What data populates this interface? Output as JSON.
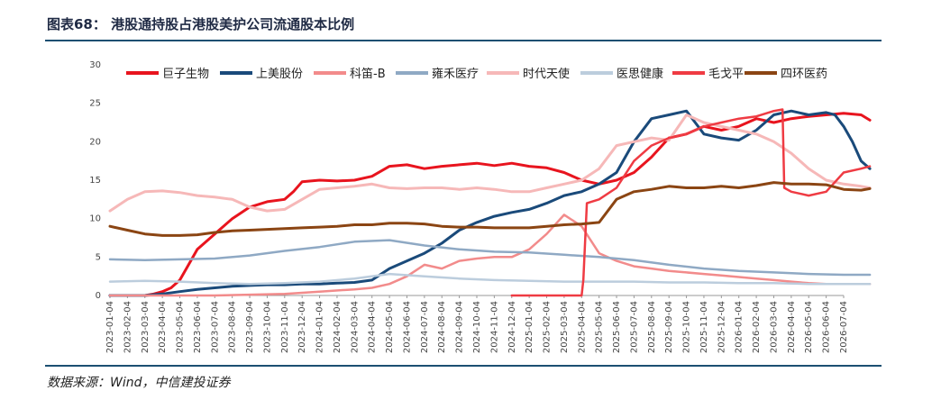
{
  "header": {
    "title": "图表68： 港股通持股占港股美护公司流通股本比例"
  },
  "footer": {
    "source": "数据来源：Wind，中信建投证券"
  },
  "chart_data": {
    "type": "line",
    "title": "",
    "xlabel": "",
    "ylabel": "",
    "ylim": [
      0,
      30
    ],
    "yticks": [
      0,
      5,
      10,
      15,
      20,
      25,
      30
    ],
    "grid": false,
    "legend_position": "top",
    "x_ticks": [
      "2023-01-04",
      "2023-02-04",
      "2023-03-04",
      "2023-04-04",
      "2023-05-04",
      "2023-06-04",
      "2023-07-04",
      "2023-08-04",
      "2023-09-04",
      "2023-10-04",
      "2023-11-04",
      "2023-12-04",
      "2024-01-04",
      "2024-02-04",
      "2024-03-04",
      "2024-04-04",
      "2024-05-04",
      "2024-06-04",
      "2024-07-04",
      "2024-08-04",
      "2024-09-04",
      "2024-10-04",
      "2024-11-04",
      "2024-12-04",
      "2025-01-04",
      "2025-02-04",
      "2025-03-04",
      "2025-04-04",
      "2025-05-04",
      "2025-06-04",
      "2025-07-04",
      "2025-08-04",
      "2025-09-04",
      "2025-10-04",
      "2025-11-04",
      "2025-12-04",
      "2026-01-04",
      "2026-02-04",
      "2026-03-04",
      "2026-04-04",
      "2026-05-04",
      "2026-06-04",
      "2026-07-04"
    ],
    "series": [
      {
        "name": "巨子生物",
        "color": "#e8141e",
        "width": 3,
        "x": [
          0,
          2,
          2.5,
          3,
          3.5,
          4,
          4.5,
          5,
          6,
          7,
          8,
          9,
          10,
          10.5,
          11,
          12,
          13,
          14,
          15,
          16,
          17,
          18,
          19,
          20,
          21,
          22,
          23,
          24,
          25,
          26,
          27,
          28,
          29,
          30,
          31,
          32,
          33,
          34,
          35,
          36,
          37,
          38,
          39,
          40,
          41,
          42,
          43,
          43.5
        ],
        "y": [
          0,
          0,
          0.2,
          0.5,
          1,
          2,
          4,
          6,
          8,
          10,
          11.5,
          12.2,
          12.5,
          13.5,
          14.8,
          15,
          14.9,
          15,
          15.5,
          16.8,
          17,
          16.5,
          16.8,
          17,
          17.2,
          16.9,
          17.2,
          16.8,
          16.6,
          16,
          15,
          14.5,
          15,
          16,
          18,
          20.5,
          21,
          22,
          21.5,
          22,
          23,
          22.5,
          23,
          23.3,
          23.5,
          23.7,
          23.5,
          22.8
        ]
      },
      {
        "name": "上美股份",
        "color": "#1a4a7a",
        "width": 3,
        "x": [
          0,
          2,
          3,
          4,
          5,
          6,
          7,
          8,
          9,
          10,
          11,
          12,
          13,
          14,
          15,
          16,
          17,
          18,
          19,
          20,
          21,
          22,
          23,
          24,
          25,
          26,
          27,
          28,
          29,
          30,
          31,
          32,
          33,
          34,
          35,
          36,
          37,
          38,
          39,
          40,
          41,
          41.5,
          42,
          42.5,
          43,
          43.5
        ],
        "y": [
          0,
          0,
          0.2,
          0.5,
          0.8,
          1,
          1.2,
          1.3,
          1.4,
          1.4,
          1.5,
          1.5,
          1.6,
          1.7,
          2,
          3.5,
          4.5,
          5.5,
          6.8,
          8.5,
          9.5,
          10.3,
          10.8,
          11.2,
          12,
          13,
          13.5,
          14.5,
          16,
          20,
          23,
          23.5,
          24,
          21,
          20.5,
          20.2,
          21.5,
          23.5,
          24,
          23.5,
          23.8,
          23.5,
          22,
          20,
          17.5,
          16.5
        ]
      },
      {
        "name": "科笛-B",
        "color": "#f28b8b",
        "width": 2.5,
        "x": [
          0,
          5,
          6,
          8,
          10,
          12,
          14,
          15,
          16,
          17,
          18,
          19,
          20,
          21,
          22,
          23,
          24,
          25,
          26,
          27,
          28,
          29,
          30,
          31,
          32,
          33,
          34,
          35,
          36,
          37,
          38,
          39,
          40,
          41,
          42,
          43,
          43.5
        ],
        "y": [
          0,
          0,
          0,
          0.1,
          0.2,
          0.5,
          0.8,
          1,
          1.5,
          2.5,
          4,
          3.5,
          4.5,
          4.8,
          5,
          5,
          6,
          8,
          10.5,
          9,
          5.5,
          4.5,
          3.8,
          3.5,
          3.2,
          3,
          2.8,
          2.6,
          2.4,
          2.2,
          2,
          1.8,
          1.6,
          1.5,
          1.5,
          1.5,
          1.5
        ]
      },
      {
        "name": "雍禾医疗",
        "color": "#8fa9c4",
        "width": 2.5,
        "x": [
          0,
          2,
          4,
          6,
          8,
          10,
          12,
          14,
          16,
          18,
          20,
          22,
          24,
          26,
          28,
          30,
          32,
          34,
          36,
          38,
          40,
          42,
          43.5
        ],
        "y": [
          4.7,
          4.6,
          4.7,
          4.8,
          5.2,
          5.8,
          6.3,
          7,
          7.2,
          6.5,
          6,
          5.7,
          5.6,
          5.3,
          5,
          4.6,
          4,
          3.5,
          3.2,
          3,
          2.8,
          2.7,
          2.7
        ]
      },
      {
        "name": "时代天使",
        "color": "#f6b8b8",
        "width": 3,
        "x": [
          0,
          1,
          2,
          3,
          4,
          5,
          6,
          7,
          8,
          9,
          10,
          11,
          12,
          13,
          14,
          15,
          16,
          17,
          18,
          19,
          20,
          21,
          22,
          23,
          24,
          25,
          26,
          27,
          28,
          29,
          30,
          31,
          32,
          33,
          34,
          35,
          36,
          37,
          38,
          39,
          40,
          41,
          42,
          43,
          43.5
        ],
        "y": [
          11,
          12.5,
          13.5,
          13.6,
          13.4,
          13,
          12.8,
          12.5,
          11.5,
          11,
          11.2,
          12.5,
          13.8,
          14,
          14.2,
          14.5,
          14,
          13.9,
          14,
          14,
          13.8,
          14,
          13.8,
          13.5,
          13.5,
          14,
          14.5,
          15,
          16.5,
          19.5,
          20,
          20.5,
          20.2,
          23.5,
          22.5,
          22,
          21.5,
          21,
          20,
          18.5,
          16.5,
          15,
          14.5,
          14.2,
          14
        ]
      },
      {
        "name": "医思健康",
        "color": "#bccddd",
        "width": 2.5,
        "x": [
          0,
          2,
          4,
          6,
          8,
          10,
          12,
          14,
          16,
          18,
          20,
          22,
          24,
          26,
          28,
          30,
          32,
          34,
          36,
          38,
          40,
          42,
          43.5
        ],
        "y": [
          1.8,
          1.9,
          1.8,
          1.6,
          1.5,
          1.6,
          1.8,
          2.2,
          2.8,
          2.5,
          2.2,
          2,
          1.9,
          1.8,
          1.8,
          1.8,
          1.7,
          1.7,
          1.6,
          1.6,
          1.5,
          1.5,
          1.5
        ]
      },
      {
        "name": "毛戈平",
        "color": "#ef3b43",
        "width": 2.5,
        "x": [
          23,
          24,
          26,
          27,
          27.1,
          27.3,
          28,
          29,
          30,
          31,
          32,
          33,
          34,
          35,
          36,
          37,
          38,
          38.5,
          38.6,
          39,
          40,
          41,
          42,
          43,
          43.5
        ],
        "y": [
          0,
          0,
          0,
          0,
          2,
          12,
          12.5,
          14,
          17.5,
          19.5,
          20.5,
          21,
          22,
          22.5,
          23,
          23.3,
          24,
          24.2,
          14,
          13.5,
          13,
          13.5,
          16,
          16.5,
          16.8
        ]
      },
      {
        "name": "四环医药",
        "color": "#8b4513",
        "width": 3,
        "x": [
          0,
          1,
          2,
          3,
          4,
          5,
          6,
          7,
          8,
          9,
          10,
          11,
          12,
          13,
          14,
          15,
          16,
          17,
          18,
          19,
          20,
          21,
          22,
          23,
          24,
          25,
          26,
          27,
          28,
          29,
          30,
          31,
          32,
          33,
          34,
          35,
          36,
          37,
          38,
          39,
          40,
          41,
          42,
          43,
          43.5
        ],
        "y": [
          9,
          8.5,
          8,
          7.8,
          7.8,
          7.9,
          8.2,
          8.4,
          8.5,
          8.6,
          8.7,
          8.8,
          8.9,
          9,
          9.2,
          9.2,
          9.4,
          9.4,
          9.3,
          9,
          8.9,
          8.9,
          8.8,
          8.8,
          8.8,
          9,
          9.2,
          9.3,
          9.5,
          12.5,
          13.5,
          13.8,
          14.2,
          14,
          14,
          14.2,
          14,
          14.3,
          14.7,
          14.5,
          14.5,
          14.4,
          13.8,
          13.7,
          13.9
        ]
      }
    ]
  }
}
